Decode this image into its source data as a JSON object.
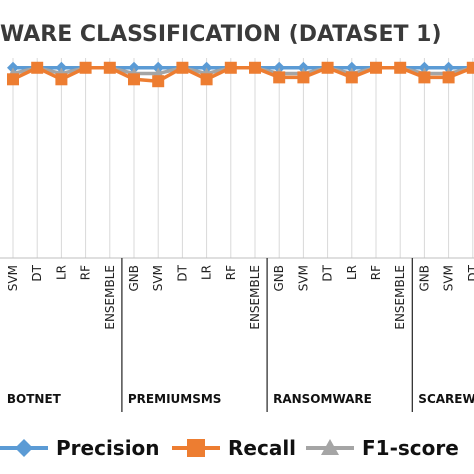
{
  "chart_data": {
    "type": "line",
    "title": "WARE CLASSIFICATION (DATASET 1)",
    "categories": [
      "SVM",
      "DT",
      "LR",
      "RF",
      "ENSEMBLE",
      "GNB",
      "SVM",
      "DT",
      "LR",
      "RF",
      "ENSEMBLE",
      "GNB",
      "SVM",
      "DT",
      "LR",
      "RF",
      "ENSEMBLE",
      "GNB",
      "SVM",
      "DT"
    ],
    "groups": [
      {
        "label": "BOTNET",
        "start": 0,
        "end": 4
      },
      {
        "label": "PREMIUMSMS",
        "start": 5,
        "end": 10
      },
      {
        "label": "RANSOMWARE",
        "start": 11,
        "end": 16
      },
      {
        "label": "SCAREW",
        "start": 17,
        "end": 19
      }
    ],
    "series": [
      {
        "name": "Precision",
        "color": "#5b9bd5",
        "marker": "diamond",
        "values": [
          0.99,
          0.99,
          0.99,
          0.99,
          0.99,
          0.99,
          0.99,
          0.99,
          0.99,
          0.99,
          0.99,
          0.99,
          0.99,
          0.99,
          0.99,
          0.99,
          0.99,
          0.99,
          0.99,
          0.99
        ]
      },
      {
        "name": "Recall",
        "color": "#ed7d31",
        "marker": "square",
        "values": [
          0.93,
          0.99,
          0.93,
          0.99,
          0.99,
          0.93,
          0.92,
          0.99,
          0.93,
          0.99,
          0.99,
          0.94,
          0.94,
          0.99,
          0.94,
          0.99,
          0.99,
          0.94,
          0.94,
          0.99
        ]
      },
      {
        "name": "F1-score",
        "color": "#a5a5a5",
        "marker": "triangle",
        "values": [
          0.96,
          0.99,
          0.96,
          0.99,
          0.99,
          0.96,
          0.96,
          0.99,
          0.96,
          0.99,
          0.99,
          0.96,
          0.96,
          0.99,
          0.96,
          0.99,
          0.99,
          0.96,
          0.96,
          0.99
        ]
      }
    ],
    "ylim": [
      0,
      1.02
    ],
    "grid": true,
    "legend": "bottom"
  }
}
